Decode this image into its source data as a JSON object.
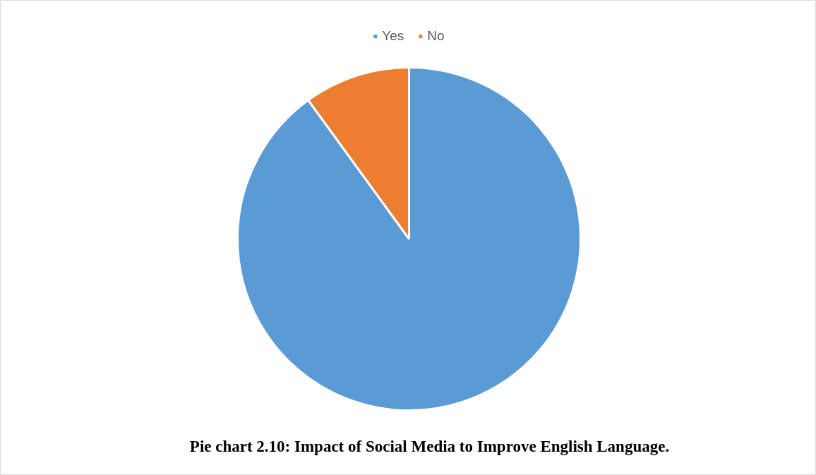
{
  "chart_data": {
    "type": "pie",
    "title": "Pie chart 2.10: Impact of Social Media to Improve English Language.",
    "categories": [
      "Yes",
      "No"
    ],
    "values": [
      90,
      10
    ],
    "colors": [
      "#5b9bd5",
      "#ed7d31"
    ],
    "legend": "top"
  }
}
